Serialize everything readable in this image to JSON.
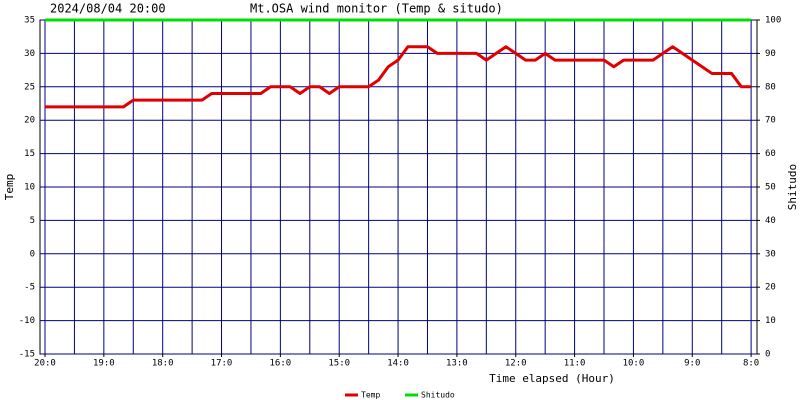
{
  "chart_data": {
    "type": "line",
    "title": "Mt.OSA wind monitor (Temp & situdo)",
    "subtitle": "2024/08/04 20:00",
    "x_label": "Time elapsed (Hour)",
    "y_label": "Temp",
    "y2_label": "Shitudo",
    "xlim": [
      20.085,
      7.9
    ],
    "xticks": [
      {
        "value": 20,
        "label": "20:0"
      },
      {
        "value": 19,
        "label": "19:0"
      },
      {
        "value": 18,
        "label": "18:0"
      },
      {
        "value": 17,
        "label": "17:0"
      },
      {
        "value": 16,
        "label": "16:0"
      },
      {
        "value": 15,
        "label": "15:0"
      },
      {
        "value": 14,
        "label": "14:0"
      },
      {
        "value": 13,
        "label": "13:0"
      },
      {
        "value": 12,
        "label": "12:0"
      },
      {
        "value": 11,
        "label": "11:0"
      },
      {
        "value": 10,
        "label": "10:0"
      },
      {
        "value": 9,
        "label": "9:0"
      },
      {
        "value": 8,
        "label": "8:0"
      }
    ],
    "xgrid": [
      20,
      19.5,
      19,
      18.5,
      18,
      17.5,
      17,
      16.5,
      16,
      15.5,
      15,
      14.5,
      14,
      13.5,
      13,
      12.5,
      12,
      11.5,
      11,
      10.5,
      10,
      9.5,
      9,
      8.5,
      8
    ],
    "ylim": [
      -15,
      35
    ],
    "yticks": [
      -15,
      -10,
      -5,
      0,
      5,
      10,
      15,
      20,
      25,
      30,
      35
    ],
    "y2lim": [
      0,
      100
    ],
    "y2ticks": [
      0,
      10,
      20,
      30,
      40,
      50,
      60,
      70,
      80,
      90,
      100
    ],
    "grid": true,
    "legend": "bottom",
    "x": [
      20,
      19.833,
      19.667,
      19.5,
      19.333,
      19.167,
      19,
      18.833,
      18.667,
      18.5,
      18.333,
      18.167,
      18,
      17.833,
      17.667,
      17.5,
      17.333,
      17.167,
      17,
      16.833,
      16.667,
      16.5,
      16.333,
      16.167,
      16,
      15.833,
      15.667,
      15.5,
      15.333,
      15.167,
      15,
      14.833,
      14.667,
      14.5,
      14.333,
      14.167,
      14,
      13.833,
      13.667,
      13.5,
      13.333,
      13.167,
      13,
      12.833,
      12.667,
      12.5,
      12.333,
      12.167,
      12,
      11.833,
      11.667,
      11.5,
      11.333,
      11.167,
      11,
      10.833,
      10.667,
      10.5,
      10.333,
      10.167,
      10,
      9.833,
      9.667,
      9.5,
      9.333,
      9.167,
      9,
      8.833,
      8.667,
      8.5,
      8.333,
      8.167,
      8
    ],
    "series": [
      {
        "name": "Temp",
        "color": "#e00000",
        "values": [
          22,
          22,
          22,
          22,
          22,
          22,
          22,
          22,
          22,
          23,
          23,
          23,
          23,
          23,
          23,
          23,
          23,
          24,
          24,
          24,
          24,
          24,
          24,
          25,
          25,
          25,
          24,
          25,
          25,
          24,
          25,
          25,
          25,
          25,
          26,
          28,
          29,
          31,
          31,
          31,
          30,
          30,
          30,
          30,
          30,
          29,
          30,
          31,
          30,
          29,
          29,
          30,
          29,
          29,
          29,
          29,
          29,
          29,
          28,
          29,
          29,
          29,
          29,
          30,
          31,
          30,
          29,
          28,
          27,
          27,
          27,
          25,
          25
        ]
      },
      {
        "name": "Shitudo",
        "color": "#00e000",
        "axis": "y2",
        "values": [
          100,
          100,
          100,
          100,
          100,
          100,
          100,
          100,
          100,
          100,
          100,
          100,
          100,
          100,
          100,
          100,
          100,
          100,
          100,
          100,
          100,
          100,
          100,
          100,
          100,
          100,
          100,
          100,
          100,
          100,
          100,
          100,
          100,
          100,
          100,
          100,
          100,
          100,
          100,
          100,
          100,
          100,
          100,
          100,
          100,
          100,
          100,
          100,
          100,
          100,
          100,
          100,
          100,
          100,
          100,
          100,
          100,
          100,
          100,
          100,
          100,
          100,
          100,
          100,
          100,
          100,
          100,
          100,
          100,
          100,
          100,
          100,
          100
        ]
      }
    ]
  }
}
